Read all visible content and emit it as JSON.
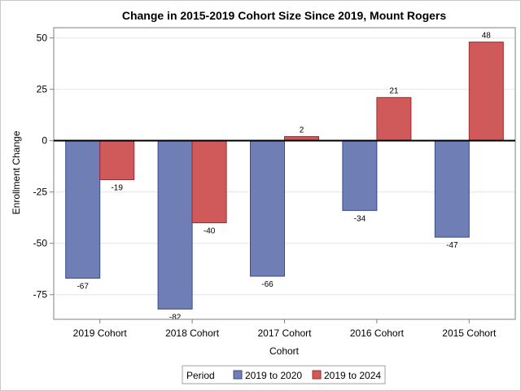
{
  "chart_data": {
    "type": "bar",
    "title": "Change in 2015-2019 Cohort Size Since 2019, Mount Rogers",
    "xlabel": "Cohort",
    "ylabel": "Enrollment Change",
    "categories": [
      "2019 Cohort",
      "2018 Cohort",
      "2017 Cohort",
      "2016 Cohort",
      "2015 Cohort"
    ],
    "series": [
      {
        "name": "2019 to 2020",
        "values": [
          -67,
          -82,
          -66,
          -34,
          -47
        ],
        "color": "#6f7fb5",
        "stroke": "#3b4a8a"
      },
      {
        "name": "2019 to 2024",
        "values": [
          -19,
          -40,
          2,
          21,
          48
        ],
        "color": "#d05a5a",
        "stroke": "#9a2c2c"
      }
    ],
    "value_labels": {
      "2019 to 2020": [
        "-67",
        "-82",
        "-66",
        "-34",
        "-47"
      ],
      "2019 to 2024": [
        "-19",
        "-40",
        "2",
        "21",
        "48"
      ]
    },
    "ylim": [
      -87,
      55
    ],
    "yticks": [
      50,
      25,
      0,
      -25,
      -50,
      -75
    ],
    "ytick_labels": [
      "50",
      "25",
      "0",
      "-25",
      "-50",
      "-75"
    ],
    "grid": true,
    "reference_line": 0,
    "legend": {
      "title": "Period",
      "position": "bottom"
    }
  }
}
